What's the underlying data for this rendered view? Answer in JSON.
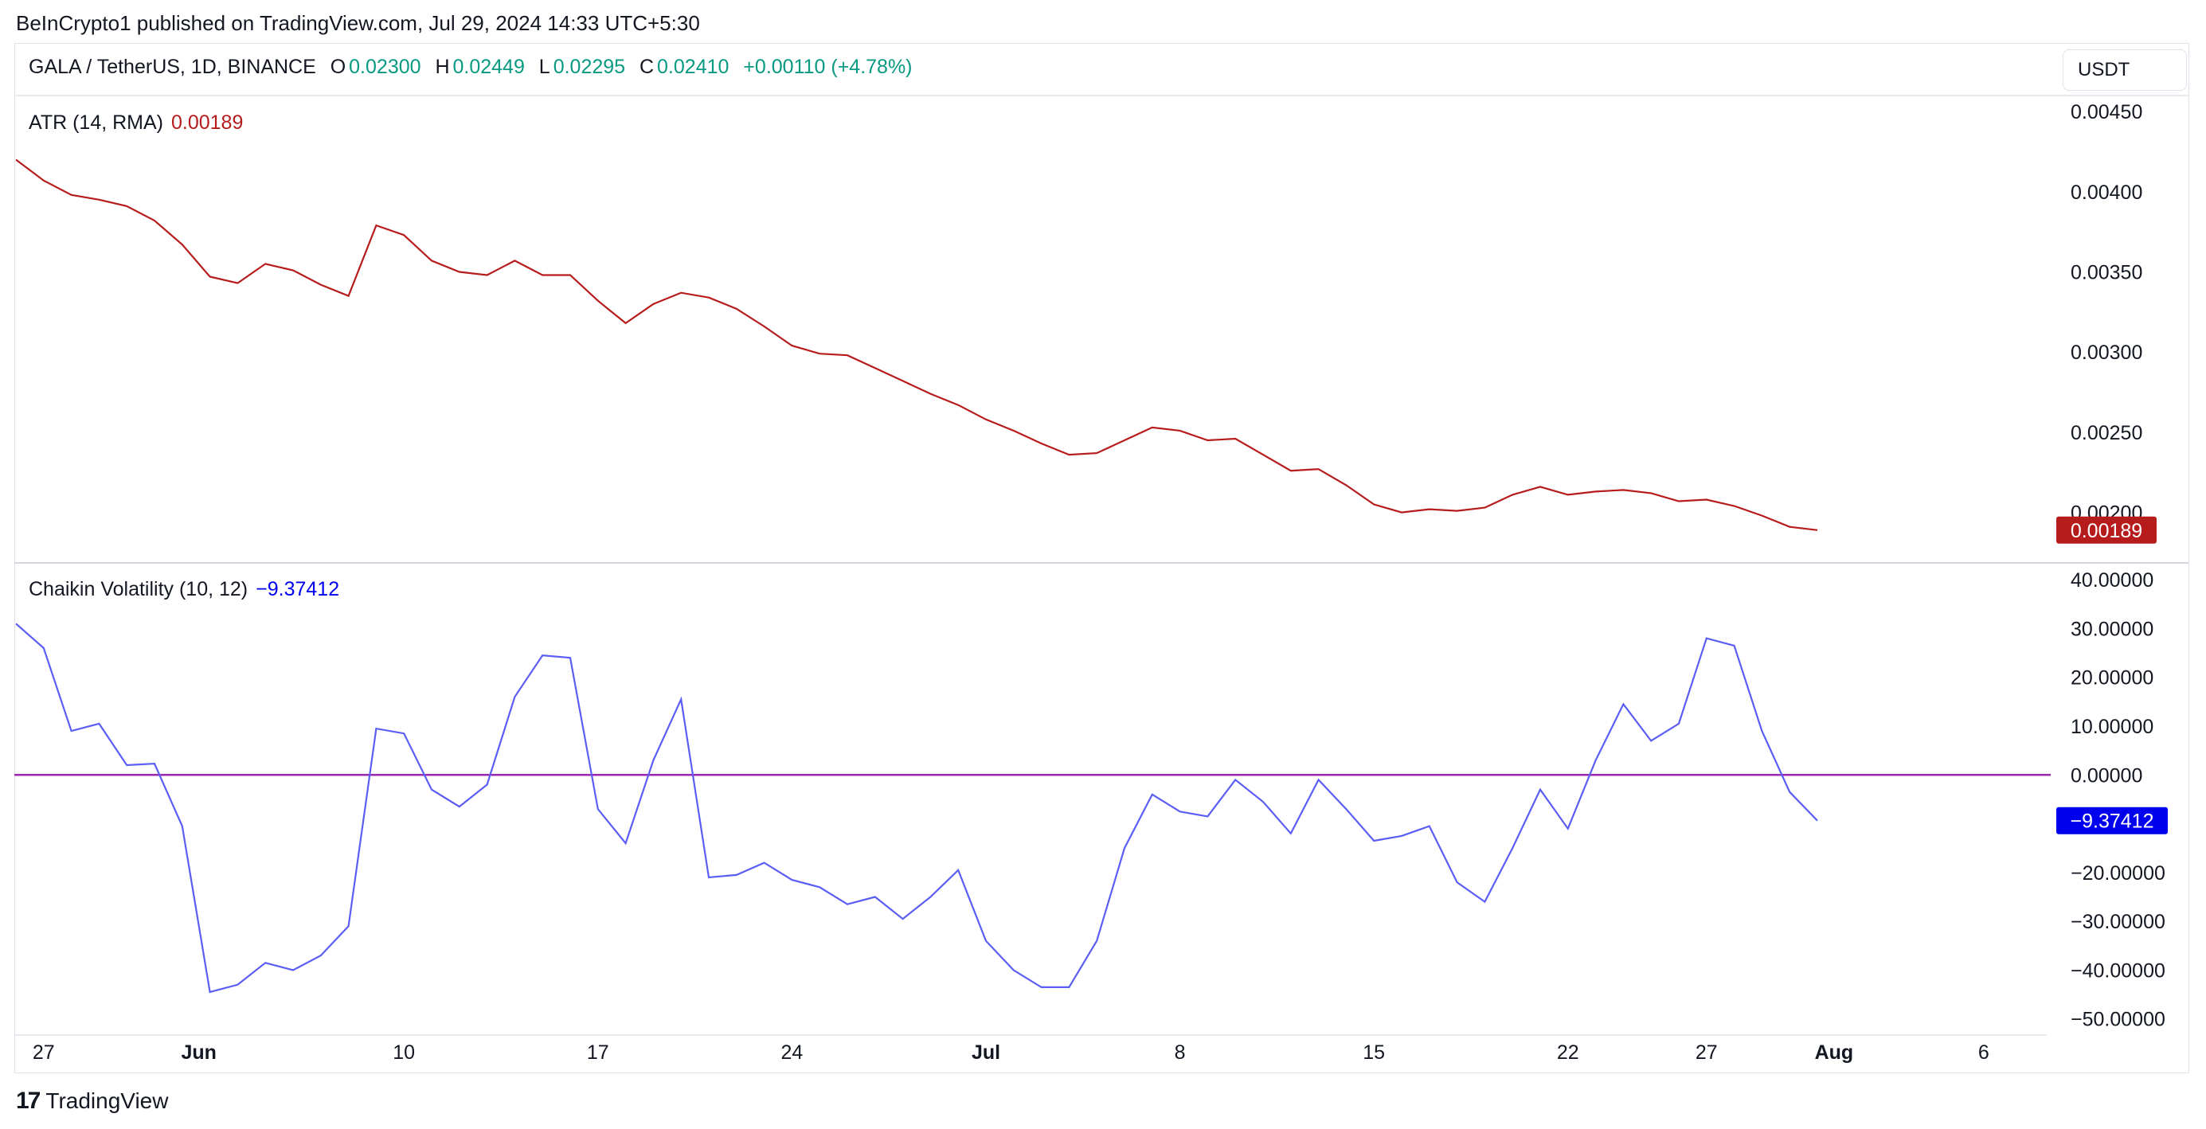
{
  "publisher_line": "BeInCrypto1 published on TradingView.com, Jul 29, 2024 14:33 UTC+5:30",
  "symbol": {
    "name": "GALA / TetherUS, 1D, BINANCE",
    "open_label": "O",
    "open": "0.02300",
    "high_label": "H",
    "high": "0.02449",
    "low_label": "L",
    "low": "0.02295",
    "close_label": "C",
    "close": "0.02410",
    "change": "+0.00110 (+4.78%)"
  },
  "currency_button": "USDT",
  "footer": {
    "brand": "TradingView",
    "logo": "17"
  },
  "colors": {
    "atr_line": "#b71c1c",
    "chaikin_line": "#5b5ef4",
    "zero_line": "#9c27b0",
    "positive_text": "#089981",
    "atr_badge": "#b71c1c",
    "chaikin_badge": "#0000ee"
  },
  "chart_data": [
    {
      "type": "line",
      "title": "ATR (14, RMA)",
      "current_value": "0.00189",
      "y_ticks": [
        "0.00450",
        "0.00400",
        "0.00350",
        "0.00300",
        "0.00250",
        "0.00200"
      ],
      "ylim": [
        0.00172,
        0.00455
      ],
      "series": [
        {
          "values": [
            0.0042,
            0.00407,
            0.00398,
            0.00395,
            0.00391,
            0.00382,
            0.00367,
            0.00347,
            0.00343,
            0.00355,
            0.00351,
            0.00342,
            0.00335,
            0.00379,
            0.00373,
            0.00357,
            0.0035,
            0.00348,
            0.00357,
            0.00348,
            0.00348,
            0.00332,
            0.00318,
            0.0033,
            0.00337,
            0.00334,
            0.00327,
            0.00316,
            0.00304,
            0.00299,
            0.00298,
            0.0029,
            0.00282,
            0.00274,
            0.00267,
            0.00258,
            0.00251,
            0.00243,
            0.00236,
            0.00237,
            0.00245,
            0.00253,
            0.00251,
            0.00245,
            0.00246,
            0.00236,
            0.00226,
            0.00227,
            0.00217,
            0.00205,
            0.002,
            0.00202,
            0.00201,
            0.00203,
            0.00211,
            0.00216,
            0.00211,
            0.00213,
            0.00214,
            0.00212,
            0.00207,
            0.00208,
            0.00204,
            0.00198,
            0.00191,
            0.00189
          ]
        }
      ]
    },
    {
      "type": "line",
      "title": "Chaikin Volatility (10, 12)",
      "current_value": "−9.37412",
      "y_ticks": [
        "40.00000",
        "30.00000",
        "20.00000",
        "10.00000",
        "0.00000",
        "−20.00000",
        "−30.00000",
        "−40.00000",
        "−50.00000"
      ],
      "ylim": [
        -52,
        41
      ],
      "reference_line": 0,
      "series": [
        {
          "values": [
            31,
            26,
            9,
            10.5,
            2,
            2.3,
            -10.5,
            -44.5,
            -43,
            -38.5,
            -40,
            -37,
            -31,
            9.5,
            8.5,
            -3,
            -6.5,
            -2,
            16,
            24.5,
            24,
            -7,
            -14,
            3,
            15.5,
            -21,
            -20.5,
            -18,
            -21.5,
            -23,
            -26.5,
            -25,
            -29.5,
            -25,
            -19.5,
            -34,
            -40,
            -43.5,
            -43.5,
            -34,
            -15,
            -4,
            -7.5,
            -8.5,
            -1,
            -5.5,
            -12,
            -1,
            -7,
            -13.5,
            -12.5,
            -10.5,
            -22,
            -26,
            -15,
            -3,
            -11,
            3,
            14.5,
            7,
            10.5,
            28,
            26.5,
            9,
            -3.5,
            -9.37412
          ]
        }
      ],
      "x_tick_labels": [
        "27",
        "Jun",
        "10",
        "17",
        "24",
        "Jul",
        "8",
        "15",
        "22",
        "27",
        "Aug",
        "6"
      ]
    }
  ]
}
